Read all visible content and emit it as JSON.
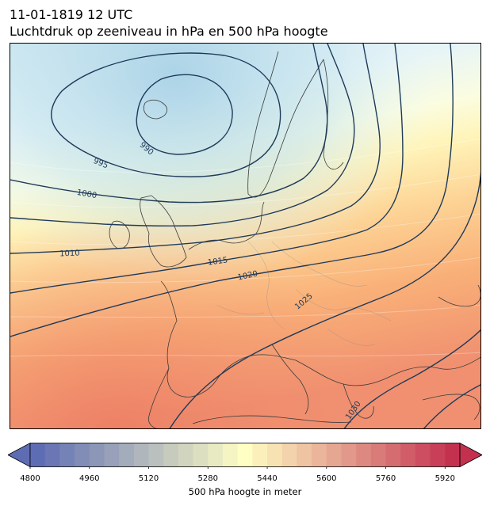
{
  "title": {
    "line1": "11-01-1819 12 UTC",
    "line2": "Luchtdruk op zeeniveau in hPa en 500 hPa hoogte"
  },
  "map": {
    "isobar_labels": [
      "990",
      "995",
      "1000",
      "1010",
      "1015",
      "1020",
      "1025",
      "1030"
    ],
    "fill_palette": "RdYlBu_r"
  },
  "colorbar": {
    "label": "500 hPa hoogte in meter",
    "min": 4800,
    "max": 5960,
    "step": 40,
    "extend": "both",
    "ticks": [
      "4800",
      "4960",
      "5120",
      "5280",
      "5440",
      "5600",
      "5760",
      "5920"
    ],
    "colors": {
      "low": "#5e6db3",
      "mid": "#ffffc4",
      "high": "#c4314f",
      "contour": "#1f3a5a"
    }
  }
}
